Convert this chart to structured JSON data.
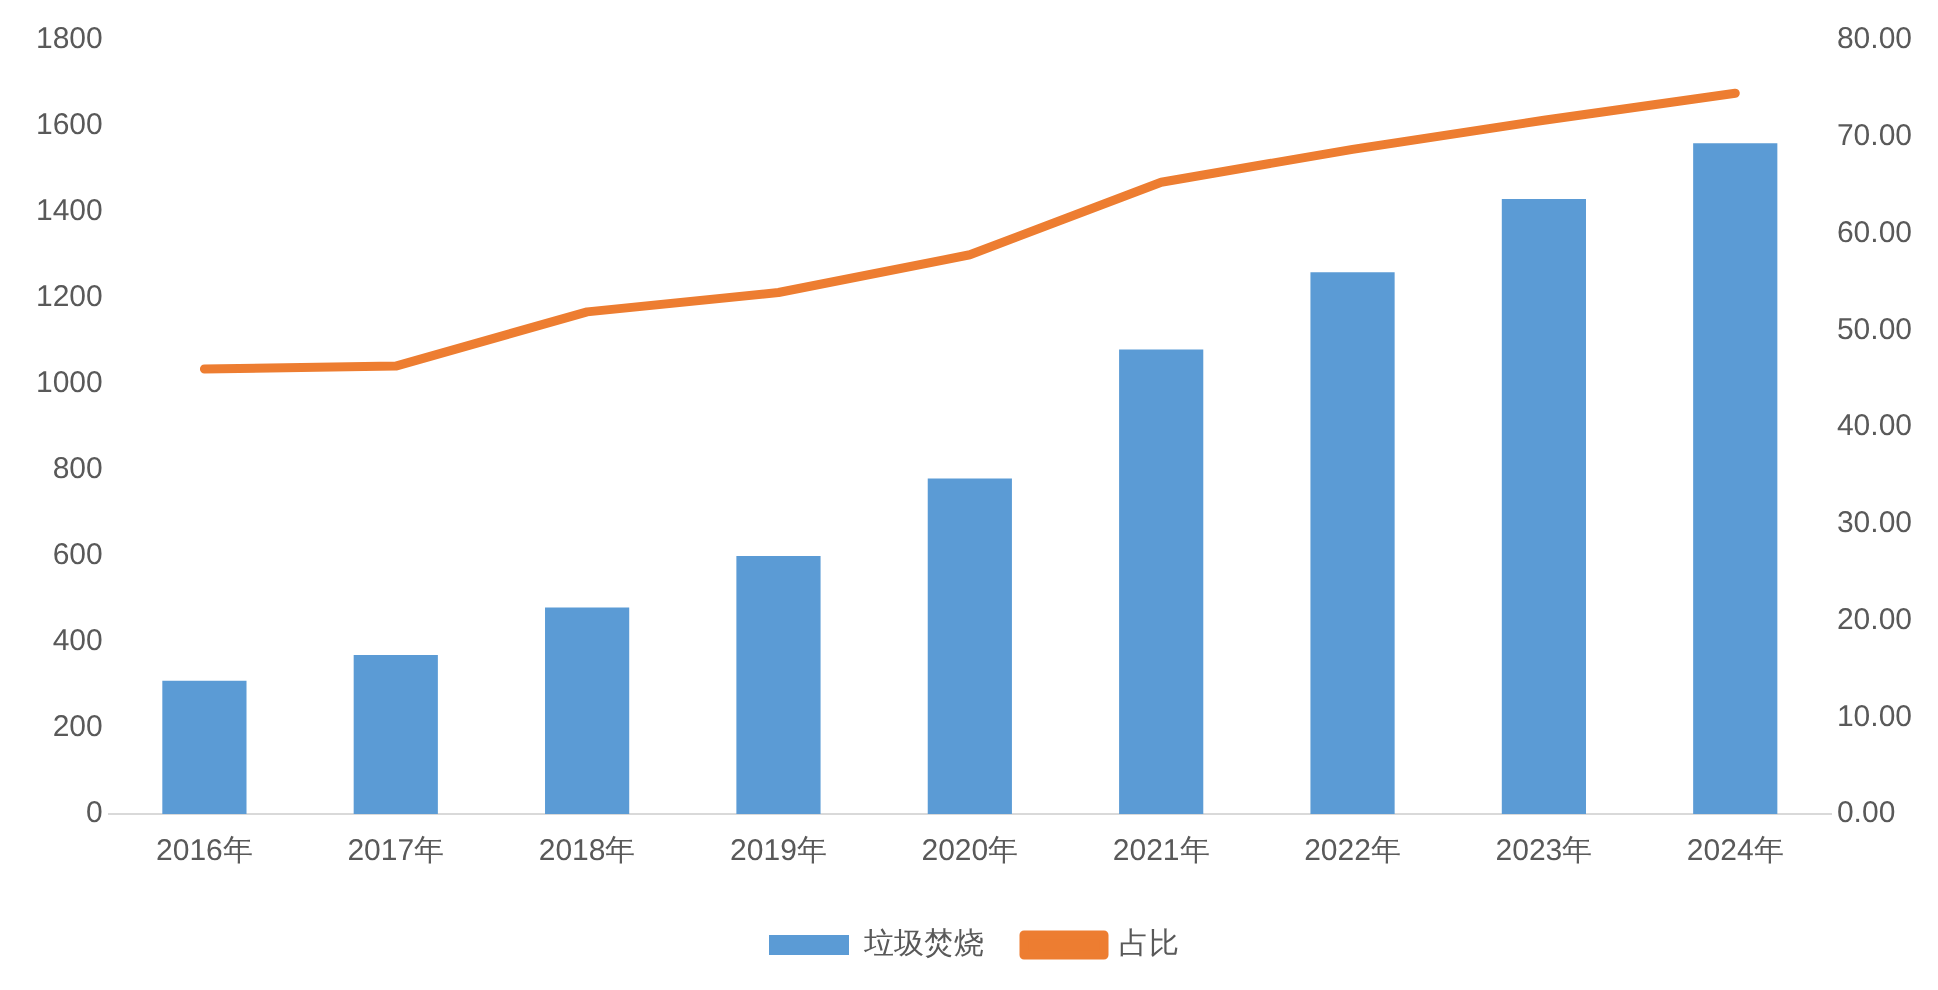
{
  "chart_data": {
    "type": "bar",
    "categories": [
      "2016年",
      "2017年",
      "2018年",
      "2019年",
      "2020年",
      "2021年",
      "2022年",
      "2023年",
      "2024年"
    ],
    "series": [
      {
        "name": "垃圾焚烧",
        "color": "#5b9bd5",
        "values": [
          310,
          370,
          480,
          600,
          780,
          1080,
          1260,
          1430,
          1560
        ]
      },
      {
        "name": "占比",
        "type": "line",
        "axis": "y2",
        "color": "#ed7d31",
        "values": [
          46.0,
          46.3,
          51.9,
          53.9,
          57.8,
          65.3,
          68.7,
          71.7,
          74.5
        ]
      }
    ],
    "ylim": [
      0,
      1800
    ],
    "yticks": [
      0,
      200,
      400,
      600,
      800,
      1000,
      1200,
      1400,
      1600,
      1800
    ],
    "y2lim": [
      0,
      80
    ],
    "y2ticks": [
      {
        "value": 0,
        "label": "0.00"
      },
      {
        "value": 10,
        "label": "10.00"
      },
      {
        "value": 20,
        "label": "20.00"
      },
      {
        "value": 30,
        "label": "30.00"
      },
      {
        "value": 40,
        "label": "40.00"
      },
      {
        "value": 50,
        "label": "50.00"
      },
      {
        "value": 60,
        "label": "60.00"
      },
      {
        "value": 70,
        "label": "70.00"
      },
      {
        "value": 80,
        "label": "80.00"
      }
    ],
    "grid": false,
    "legend": "bottom",
    "marker": "none"
  }
}
